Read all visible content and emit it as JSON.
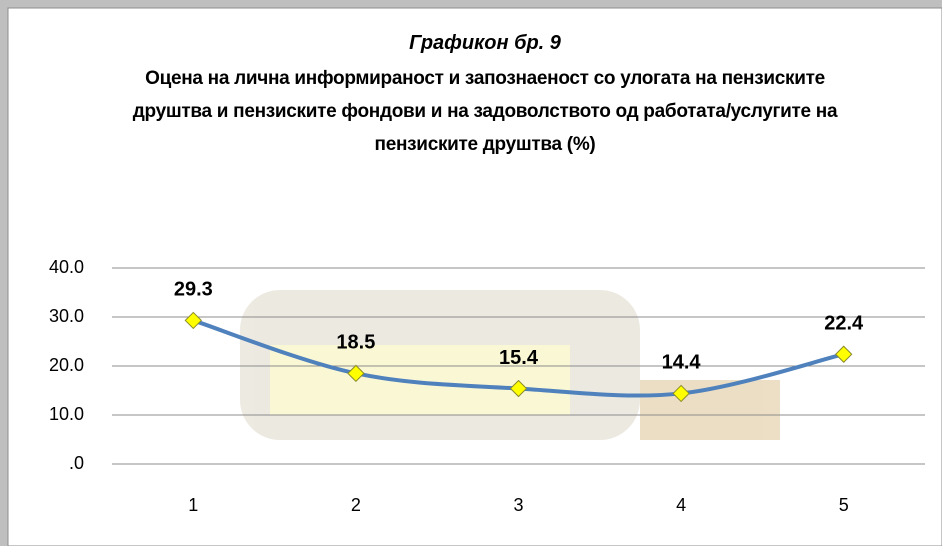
{
  "chart_data": {
    "type": "line",
    "title": "Графикон бр. 9",
    "subtitle": "Оцена на лична информираност и запознаеност со улогата на пензиските друштва и пензиските фондови и на задоволството од работата/услугите на пензиските друштва (%)",
    "categories": [
      "1",
      "2",
      "3",
      "4",
      "5"
    ],
    "values": [
      29.3,
      18.5,
      15.4,
      14.4,
      22.4
    ],
    "color": "#4f81bd",
    "marker_color": "#ffff00",
    "ylim": [
      0,
      40
    ],
    "yticks": [
      {
        "value": 0,
        "label": ".0"
      },
      {
        "value": 10,
        "label": "10.0"
      },
      {
        "value": 20,
        "label": "20.0"
      },
      {
        "value": 30,
        "label": "30.0"
      },
      {
        "value": 40,
        "label": "40.0"
      }
    ],
    "grid": true
  }
}
